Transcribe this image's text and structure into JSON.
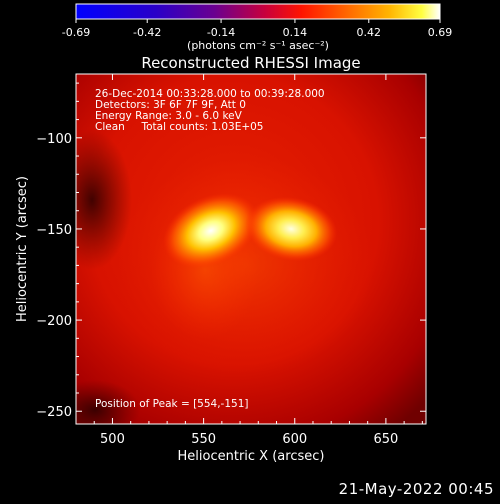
{
  "chart_data": {
    "type": "heatmap",
    "title": "Reconstructed RHESSI Image",
    "xlabel": "Heliocentric X (arcsec)",
    "ylabel": "Heliocentric Y (arcsec)",
    "xlim": [
      480,
      672
    ],
    "ylim": [
      -257,
      -65
    ],
    "x_ticks": [
      500,
      550,
      600,
      650
    ],
    "y_ticks": [
      -100,
      -150,
      -200,
      -250
    ],
    "colorbar": {
      "min": -0.69,
      "max": 0.69,
      "ticks": [
        "-0.69",
        "-0.42",
        "-0.14",
        "0.14",
        "0.42",
        "0.69"
      ],
      "tick_values": [
        -0.69,
        -0.42,
        -0.14,
        0.14,
        0.42,
        0.69
      ],
      "units_label": "(photons cm⁻² s⁻¹ asec⁻²)",
      "colormap": "std_gamma_II (blue-purple-red-orange-yellow-white)"
    },
    "annotations": {
      "time_range": "26-Dec-2014 00:33:28.000 to 00:39:28.000",
      "detectors": "Detectors: 3F 6F 7F 9F, Att 0",
      "energy_range": "Energy Range: 3.0 - 6.0 keV",
      "method": "Clean     Total counts: 1.03E+05",
      "peak": "Position of Peak = [554,-151]"
    },
    "sources": [
      {
        "x": 554,
        "y": -151,
        "peak": 0.69
      },
      {
        "x": 598,
        "y": -150,
        "peak": 0.58
      }
    ]
  },
  "footer": {
    "date": "21-May-2022 00:45"
  }
}
